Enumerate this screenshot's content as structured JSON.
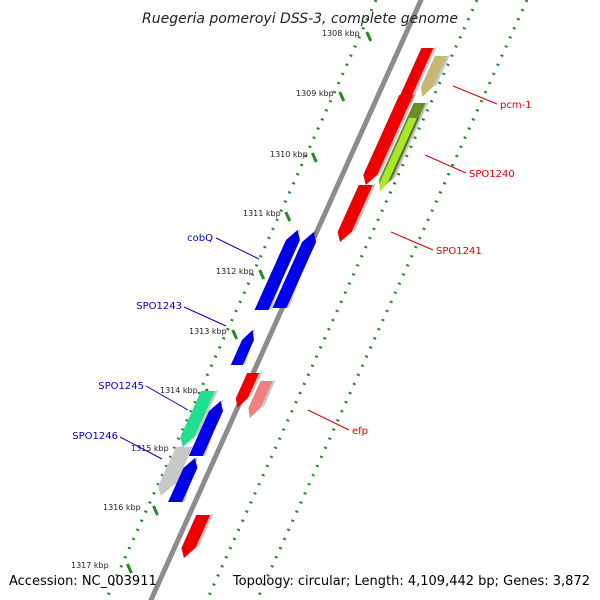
{
  "title": "Ruegeria pomeroyi DSS-3, complete genome",
  "footer": {
    "accession": "Accession: NC_003911",
    "summary": "Topology: circular; Length: 4,109,442 bp; Genes: 3,872"
  },
  "colors": {
    "backbone": "#8c8c8c",
    "ticks": "#228b22",
    "forward_label": "#dd0000",
    "reverse_label": "#0000cc",
    "red": "#ee0000",
    "khaki": "#c8b878",
    "olive": "#6b8e23",
    "lime": "#a8e82a",
    "blue": "#0000ee",
    "teal": "#20e090",
    "grey": "#c8c8c8",
    "salmon": "#f08080"
  },
  "scale": {
    "ticks": [
      "1308 kbp",
      "1309 kbp",
      "1310 kbp",
      "1311 kbp",
      "1312 kbp",
      "1313 kbp",
      "1314 kbp",
      "1315 kbp",
      "1316 kbp",
      "1317 kbp"
    ]
  },
  "features": {
    "forward": [
      {
        "label": "pcm-1",
        "color": "khaki"
      },
      {
        "label": "SPO1240",
        "color": "lime"
      },
      {
        "label": "SPO1241",
        "color": "red"
      },
      {
        "label": "efp",
        "color": "salmon"
      }
    ],
    "reverse": [
      {
        "label": "cobQ",
        "color": "blue"
      },
      {
        "label": "SPO1243",
        "color": "blue"
      },
      {
        "label": "SPO1245",
        "color": "teal"
      },
      {
        "label": "SPO1246",
        "color": "grey"
      }
    ]
  }
}
